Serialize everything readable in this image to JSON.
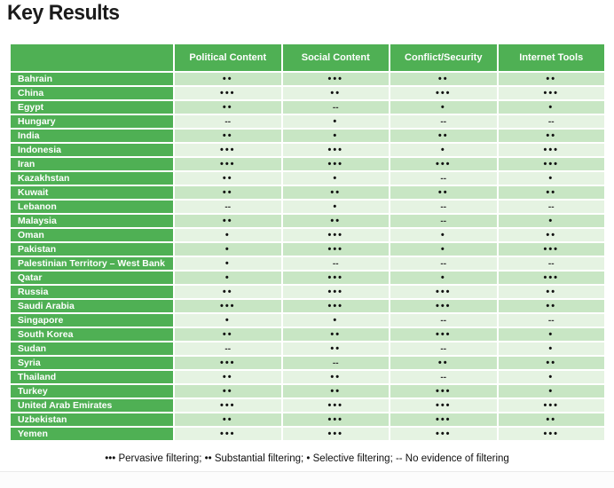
{
  "page": {
    "title": "Key Results",
    "legend": "••• Pervasive filtering; •• Substantial filtering; • Selective filtering; -- No evidence of filtering"
  },
  "colors": {
    "header_green": "#4fb054",
    "row_odd_bg": "#c8e6c4",
    "row_even_bg": "#e5f3e2",
    "dot_color": "#111111"
  },
  "table": {
    "columns": [
      "",
      "Political Content",
      "Social Content",
      "Conflict/Security",
      "Internet Tools"
    ],
    "rows": [
      {
        "country": "Bahrain",
        "values": [
          "••",
          "•••",
          "••",
          "••"
        ]
      },
      {
        "country": "China",
        "values": [
          "•••",
          "••",
          "•••",
          "•••"
        ]
      },
      {
        "country": "Egypt",
        "values": [
          "••",
          "--",
          "•",
          "•"
        ]
      },
      {
        "country": "Hungary",
        "values": [
          "--",
          "•",
          "--",
          "--"
        ]
      },
      {
        "country": "India",
        "values": [
          "••",
          "•",
          "••",
          "••"
        ]
      },
      {
        "country": "Indonesia",
        "values": [
          "•••",
          "•••",
          "•",
          "•••"
        ]
      },
      {
        "country": "Iran",
        "values": [
          "•••",
          "•••",
          "•••",
          "•••"
        ]
      },
      {
        "country": "Kazakhstan",
        "values": [
          "••",
          "•",
          "--",
          "•"
        ]
      },
      {
        "country": "Kuwait",
        "values": [
          "••",
          "••",
          "••",
          "••"
        ]
      },
      {
        "country": "Lebanon",
        "values": [
          "--",
          "•",
          "--",
          "--"
        ]
      },
      {
        "country": "Malaysia",
        "values": [
          "••",
          "••",
          "--",
          "•"
        ]
      },
      {
        "country": "Oman",
        "values": [
          "•",
          "•••",
          "•",
          "••"
        ]
      },
      {
        "country": "Pakistan",
        "values": [
          "•",
          "•••",
          "•",
          "•••"
        ]
      },
      {
        "country": "Palestinian Territory – West Bank",
        "values": [
          "•",
          "--",
          "--",
          "--"
        ]
      },
      {
        "country": "Qatar",
        "values": [
          "•",
          "•••",
          "•",
          "•••"
        ]
      },
      {
        "country": "Russia",
        "values": [
          "••",
          "•••",
          "•••",
          "••"
        ]
      },
      {
        "country": "Saudi Arabia",
        "values": [
          "•••",
          "•••",
          "•••",
          "••"
        ]
      },
      {
        "country": "Singapore",
        "values": [
          "•",
          "•",
          "--",
          "--"
        ]
      },
      {
        "country": "South Korea",
        "values": [
          "••",
          "••",
          "•••",
          "•"
        ]
      },
      {
        "country": "Sudan",
        "values": [
          "--",
          "••",
          "--",
          "•"
        ]
      },
      {
        "country": "Syria",
        "values": [
          "•••",
          "--",
          "••",
          "••"
        ]
      },
      {
        "country": "Thailand",
        "values": [
          "••",
          "••",
          "--",
          "•"
        ]
      },
      {
        "country": "Turkey",
        "values": [
          "••",
          "••",
          "•••",
          "•"
        ]
      },
      {
        "country": "United Arab Emirates",
        "values": [
          "•••",
          "•••",
          "•••",
          "•••"
        ]
      },
      {
        "country": "Uzbekistan",
        "values": [
          "••",
          "•••",
          "•••",
          "••"
        ]
      },
      {
        "country": "Yemen",
        "values": [
          "•••",
          "•••",
          "•••",
          "•••"
        ]
      }
    ]
  }
}
